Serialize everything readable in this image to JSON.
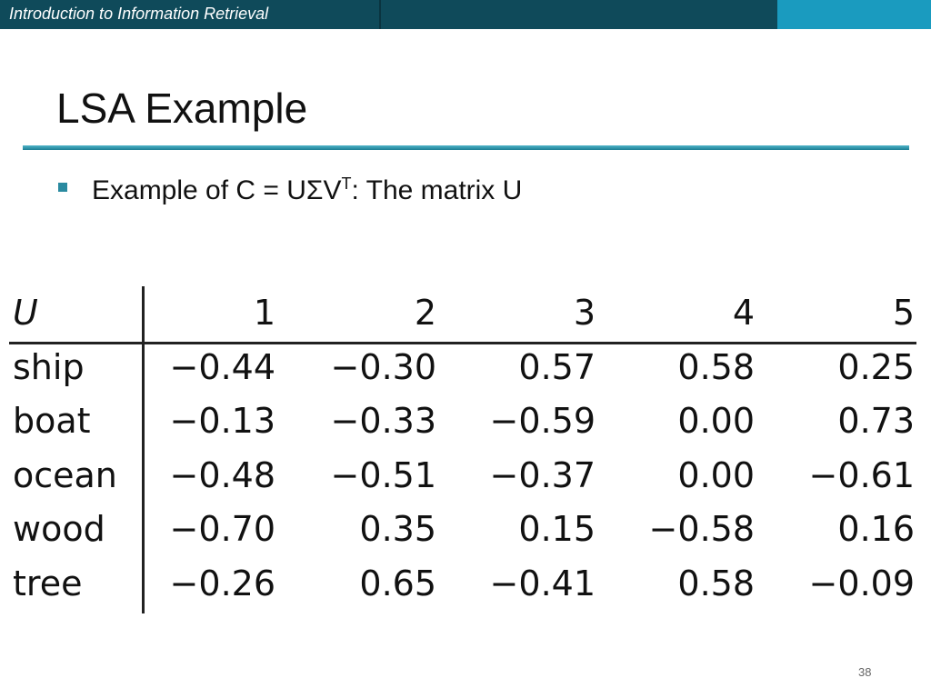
{
  "header": {
    "course": "Introduction to Information Retrieval"
  },
  "title": "LSA Example",
  "bullet": {
    "before": "Example of C = UΣV",
    "sup": "T",
    "after": ": The matrix U"
  },
  "table": {
    "header": [
      "U",
      "1",
      "2",
      "3",
      "4",
      "5"
    ],
    "rows": [
      [
        "ship",
        "−0.44",
        "−0.30",
        "0.57",
        "0.58",
        "0.25"
      ],
      [
        "boat",
        "−0.13",
        "−0.33",
        "−0.59",
        "0.00",
        "0.73"
      ],
      [
        "ocean",
        "−0.48",
        "−0.51",
        "−0.37",
        "0.00",
        "−0.61"
      ],
      [
        "wood",
        "−0.70",
        "0.35",
        "0.15",
        "−0.58",
        "0.16"
      ],
      [
        "tree",
        "−0.26",
        "0.65",
        "−0.41",
        "0.58",
        "−0.09"
      ]
    ]
  },
  "page_number": "38"
}
